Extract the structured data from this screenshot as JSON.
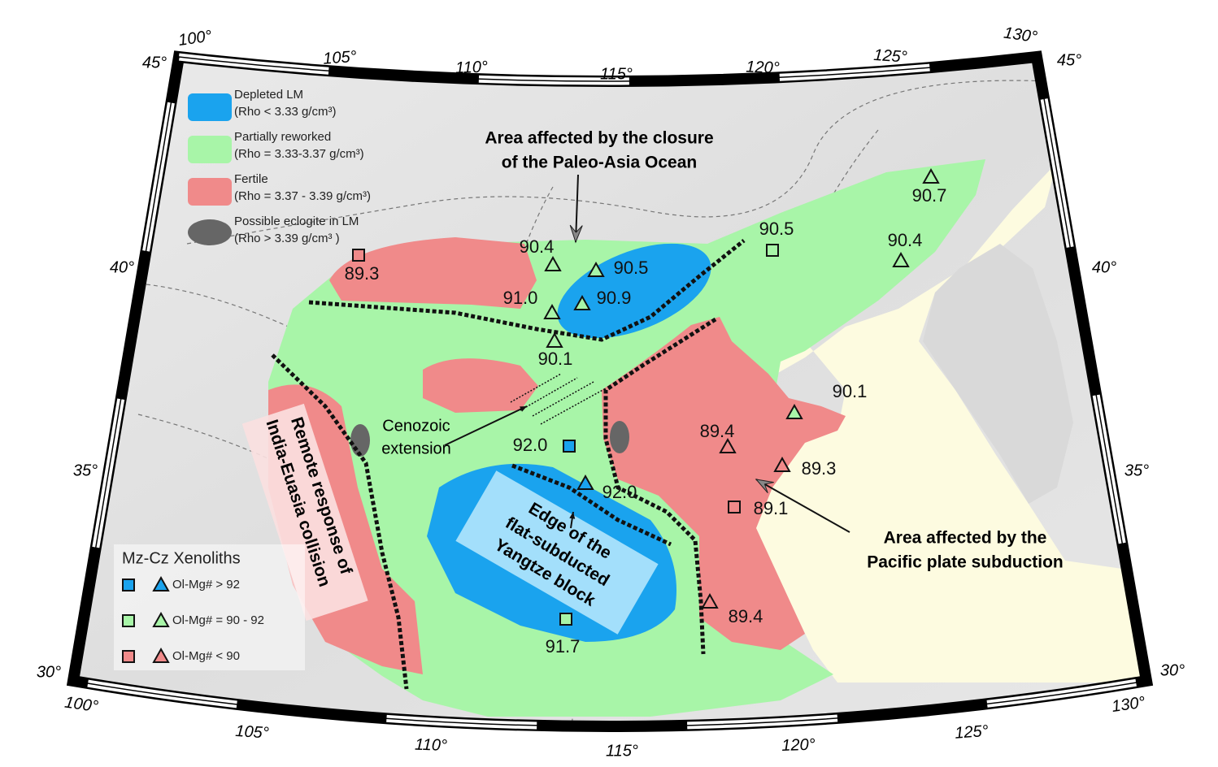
{
  "graticule": {
    "top": [
      "100°",
      "105°",
      "110°",
      "115°",
      "120°",
      "125°",
      "130°"
    ],
    "bottom": [
      "100°",
      "105°",
      "110°",
      "115°",
      "120°",
      "125°",
      "130°"
    ],
    "left": [
      "45°",
      "40°",
      "35°",
      "30°"
    ],
    "right": [
      "45°",
      "40°",
      "35°",
      "30°"
    ]
  },
  "legend": [
    {
      "name": "Depleted LM",
      "range": "(Rho < 3.33 g/cm³)"
    },
    {
      "name": "Partially reworked",
      "range": "(Rho = 3.33-3.37 g/cm³)"
    },
    {
      "name": "Fertile",
      "range": "(Rho = 3.37 - 3.39 g/cm³)"
    },
    {
      "name": "Possible eclogite in LM",
      "range": "(Rho > 3.39  g/cm³ )"
    }
  ],
  "annotations": {
    "paleo_asia": [
      "Area affected by the closure",
      "of the Paleo-Asia Ocean"
    ],
    "cenozoic": [
      "Cenozoic",
      "extension"
    ],
    "india": [
      "Remote response of",
      "India-Euasia collision"
    ],
    "yangtze": [
      "Edge of the",
      "flat-subducted",
      "Yangtze block"
    ],
    "pacific": [
      "Area affected by the",
      "Pacific plate subduction"
    ]
  },
  "xenolith_legend": {
    "title": "Mz-Cz Xenoliths",
    "items": [
      "Ol-Mg# > 92",
      "Ol-Mg# = 90 - 92",
      "Ol-Mg# < 90"
    ]
  },
  "samples": [
    "89.3",
    "90.4",
    "90.5",
    "91.0",
    "90.9",
    "90.1",
    "92.0",
    "92.0",
    "91.7",
    "90.5",
    "90.7",
    "90.4",
    "90.1",
    "89.4",
    "89.3",
    "89.1",
    "89.4"
  ]
}
